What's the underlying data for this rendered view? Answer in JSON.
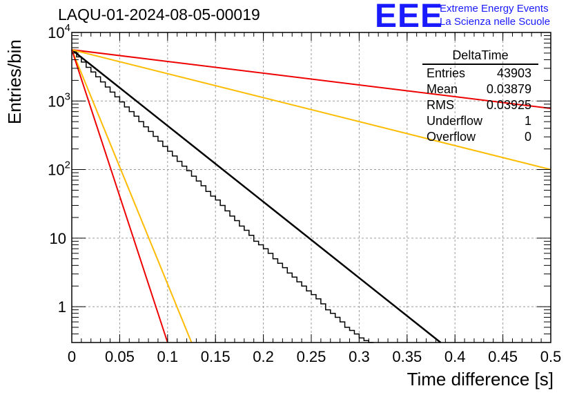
{
  "title": "LAQU-01-2024-08-05-00019",
  "logo": {
    "mark": "EEE",
    "line1": "Extreme Energy Events",
    "line2": "La Scienza nelle Scuole",
    "color": "#1a1aff"
  },
  "stats": {
    "name": "DeltaTime",
    "rows": [
      {
        "label": "Entries",
        "value": "43903"
      },
      {
        "label": "Mean",
        "value": "0.03879"
      },
      {
        "label": "RMS",
        "value": "0.03925"
      },
      {
        "label": "Underflow",
        "value": "1"
      },
      {
        "label": "Overflow",
        "value": "0"
      }
    ]
  },
  "chart_data": {
    "type": "line",
    "xlabel": "Time difference [s]",
    "ylabel": "Entries/bin",
    "xlim": [
      0,
      0.5
    ],
    "ylim": [
      0.3,
      10000
    ],
    "yscale": "log",
    "grid": true,
    "xticks": [
      "0",
      "0.05",
      "0.1",
      "0.15",
      "0.2",
      "0.25",
      "0.3",
      "0.35",
      "0.4",
      "0.45",
      "0.5"
    ],
    "yticks": [
      {
        "value": 1,
        "base": "1",
        "exp": ""
      },
      {
        "value": 10,
        "base": "10",
        "exp": ""
      },
      {
        "value": 100,
        "base": "10",
        "exp": "2"
      },
      {
        "value": 1000,
        "base": "10",
        "exp": "3"
      },
      {
        "value": 10000,
        "base": "10",
        "exp": "4"
      }
    ],
    "histogram": {
      "color": "#000000",
      "bin_width": 0.005,
      "values": [
        5200,
        4400,
        3700,
        3100,
        2650,
        2250,
        1900,
        1600,
        1350,
        1150,
        970,
        820,
        700,
        600,
        500,
        420,
        360,
        305,
        260,
        218,
        185,
        158,
        132,
        112,
        96,
        80,
        68,
        58,
        48,
        41,
        36,
        30,
        25,
        21,
        18,
        15,
        13,
        11,
        9,
        8,
        7,
        6,
        5,
        4.3,
        3.7,
        3.1,
        2.7,
        2.3,
        2.0,
        1.7,
        1.5,
        1.3,
        1.1,
        0.9,
        0.8,
        0.7,
        0.6,
        0.5,
        0.45,
        0.4,
        0.35,
        0.32,
        0.3
      ],
      "xlim": [
        0,
        0.385
      ]
    },
    "series": [
      {
        "color": "#000000",
        "x": [
          0.0,
          0.385
        ],
        "y": [
          5600,
          0.3
        ]
      },
      {
        "color": "#ee0000",
        "x": [
          0.0,
          0.5
        ],
        "y": [
          5600,
          780
        ]
      },
      {
        "color": "#ffbb00",
        "x": [
          0.0,
          0.5
        ],
        "y": [
          5600,
          100
        ]
      },
      {
        "color": "#ffbb00",
        "x": [
          0.0,
          0.125
        ],
        "y": [
          5600,
          0.3
        ]
      },
      {
        "color": "#ee0000",
        "x": [
          0.0,
          0.1
        ],
        "y": [
          5600,
          0.3
        ]
      }
    ]
  }
}
